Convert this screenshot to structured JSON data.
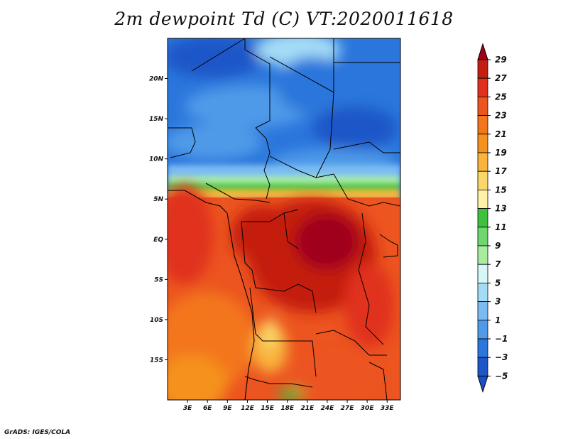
{
  "title": "2m dewpoint Td (C) VT:2020011618",
  "credit": "GrADS: IGES/COLA",
  "map": {
    "lat_labels": [
      "20N",
      "15N",
      "10N",
      "5N",
      "EQ",
      "5S",
      "10S",
      "15S"
    ],
    "lat_values": [
      20,
      15,
      10,
      5,
      0,
      -5,
      -10,
      -15
    ],
    "lon_labels": [
      "3E",
      "6E",
      "9E",
      "12E",
      "15E",
      "18E",
      "21E",
      "24E",
      "27E",
      "30E",
      "33E"
    ],
    "lon_values": [
      3,
      6,
      9,
      12,
      15,
      18,
      21,
      24,
      27,
      30,
      33
    ],
    "lat_range": [
      -20,
      25
    ],
    "lon_range": [
      0,
      35
    ]
  },
  "colorbar": {
    "labels": [
      "29",
      "27",
      "25",
      "23",
      "21",
      "19",
      "17",
      "15",
      "13",
      "11",
      "9",
      "7",
      "5",
      "3",
      "1",
      "−1",
      "−3",
      "−5"
    ],
    "colors": [
      "#a0001a",
      "#c41e10",
      "#e0301e",
      "#ec5420",
      "#f3761c",
      "#f5921e",
      "#f8b43c",
      "#fad768",
      "#fff2a8",
      "#3ec23e",
      "#6ed86e",
      "#a8eca0",
      "#d6f6f8",
      "#a4dcf6",
      "#7abcf2",
      "#509ae8",
      "#2a76dc",
      "#1e56c8",
      "#1850c8"
    ]
  }
}
